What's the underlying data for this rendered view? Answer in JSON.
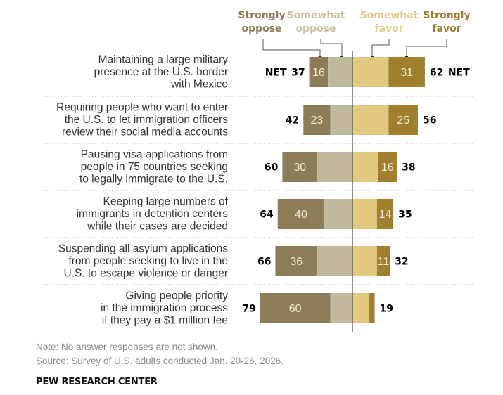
{
  "chart_data": {
    "type": "bar",
    "subtype": "diverging-stacked-horizontal",
    "legend": [
      "Strongly oppose",
      "Somewhat oppose",
      "Somewhat favor",
      "Strongly favor"
    ],
    "legend_lines": [
      [
        "Strongly",
        "oppose"
      ],
      [
        "Somewhat",
        "oppose"
      ],
      [
        "Somewhat",
        "favor"
      ],
      [
        "Strongly",
        "favor"
      ]
    ],
    "colors": {
      "strongly_oppose": "#8C7D58",
      "somewhat_oppose": "#C0B89C",
      "somewhat_favor": "#E2C880",
      "strongly_favor": "#A17F2E"
    },
    "legend_colors": [
      "#8C7D58",
      "#C0B89C",
      "#E2C880",
      "#A17F2E"
    ],
    "net_label": "NET",
    "categories": [
      [
        "Maintaining a large military",
        "presence at the U.S. border",
        "with Mexico"
      ],
      [
        "Requiring people who want to enter",
        "the U.S. to let immigration officers",
        "review their social media accounts"
      ],
      [
        "Pausing visa applications from",
        "people in 75 countries seeking",
        "to legally immigrate to the U.S."
      ],
      [
        "Keeping large numbers of",
        "immigrants in detention centers",
        "while their cases are decided"
      ],
      [
        "Suspending all asylum applications",
        "from people seeking to live in the",
        "U.S. to escape violence or danger"
      ],
      [
        "Giving people priority",
        "in the immigration process",
        "if they pay a $1 million fee"
      ]
    ],
    "series": [
      {
        "name": "Strongly oppose",
        "values": [
          16,
          23,
          30,
          40,
          36,
          60
        ],
        "labels": [
          "16",
          "23",
          "30",
          "40",
          "36",
          "60"
        ]
      },
      {
        "name": "Somewhat oppose",
        "values": [
          21,
          19,
          30,
          24,
          30,
          19
        ],
        "labels": [
          "",
          "",
          "",
          "",
          "",
          ""
        ]
      },
      {
        "name": "Somewhat favor",
        "values": [
          31,
          31,
          22,
          21,
          21,
          14
        ],
        "labels": [
          "",
          "",
          "",
          "",
          "",
          ""
        ]
      },
      {
        "name": "Strongly favor",
        "values": [
          31,
          25,
          16,
          14,
          11,
          5
        ],
        "labels": [
          "31",
          "25",
          "16",
          "14",
          "11",
          ""
        ]
      }
    ],
    "net_oppose": [
      37,
      42,
      60,
      64,
      66,
      79
    ],
    "net_favor": [
      62,
      56,
      38,
      35,
      32,
      19
    ],
    "title": "",
    "xlabel": "",
    "ylabel": ""
  },
  "footer": {
    "note": "Note: No answer responses are not shown.",
    "source": "Source: Survey of U.S. adults conducted Jan. 20-26, 2026.",
    "brand": "PEW RESEARCH CENTER"
  }
}
